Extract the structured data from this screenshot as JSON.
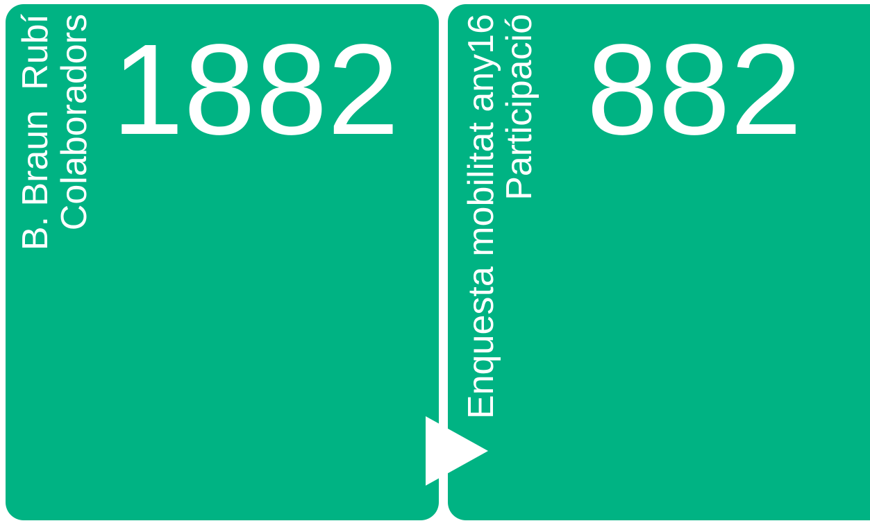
{
  "boxes": [
    {
      "title_lines": [
        "B. Braun  Rubí",
        "Colaboradors"
      ],
      "value": 1882
    },
    {
      "title_lines": [
        "Enquesta mobilitat any16",
        "Participació"
      ],
      "value": 882
    }
  ]
}
